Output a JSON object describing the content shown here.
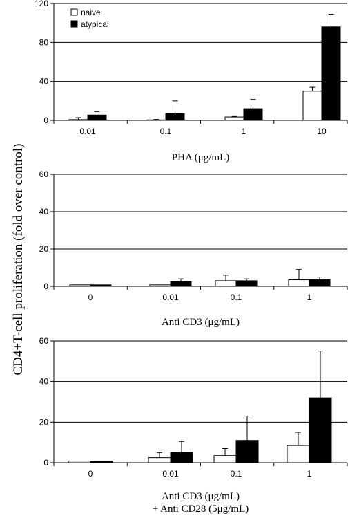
{
  "chart_data": {
    "type": "bar",
    "ylabel": "CD4+T-cell proliferation (fold over control)",
    "legend": {
      "placement": "top-left",
      "entries": [
        "naive",
        "atypical"
      ]
    },
    "colors": {
      "naive": "#ffffff",
      "atypical": "#000000"
    },
    "grid": true,
    "error_bars": true,
    "panels": [
      {
        "xlabel_lines": [
          "PHA (μg/mL)"
        ],
        "categories": [
          "0.01",
          "0.1",
          "1",
          "10"
        ],
        "ylim": [
          0,
          120
        ],
        "yticks": [
          0,
          40,
          80,
          120
        ],
        "series": [
          {
            "name": "naive",
            "values": [
              0.8,
              0.5,
              3.5,
              30
            ],
            "errors": [
              2,
              0.5,
              0.5,
              4
            ]
          },
          {
            "name": "atypical",
            "values": [
              5.5,
              7,
              12,
              96
            ],
            "errors": [
              3.5,
              13,
              9.5,
              13
            ]
          }
        ]
      },
      {
        "xlabel_lines": [
          "Anti CD3 (μg/mL)"
        ],
        "categories": [
          "0",
          "0.01",
          "0.1",
          "1"
        ],
        "ylim": [
          0,
          60
        ],
        "yticks": [
          0,
          20,
          40,
          60
        ],
        "series": [
          {
            "name": "naive",
            "values": [
              0.8,
              0.8,
              3,
              3.5
            ],
            "errors": [
              0,
              0,
              3,
              5.5
            ]
          },
          {
            "name": "atypical",
            "values": [
              0.8,
              2.5,
              3,
              3.5
            ],
            "errors": [
              0,
              1.5,
              1,
              1.5
            ]
          }
        ]
      },
      {
        "xlabel_lines": [
          "Anti CD3 (μg/mL)",
          "+ Anti CD28 (5μg/mL)"
        ],
        "categories": [
          "0",
          "0.01",
          "0.1",
          "1"
        ],
        "ylim": [
          0,
          60
        ],
        "yticks": [
          0,
          20,
          40,
          60
        ],
        "series": [
          {
            "name": "naive",
            "values": [
              0.8,
              2.5,
              3.5,
              8.5
            ],
            "errors": [
              0,
              2.5,
              3.5,
              6.5
            ]
          },
          {
            "name": "atypical",
            "values": [
              0.8,
              5,
              11,
              32
            ],
            "errors": [
              0,
              5.5,
              12,
              23
            ]
          }
        ]
      }
    ]
  }
}
